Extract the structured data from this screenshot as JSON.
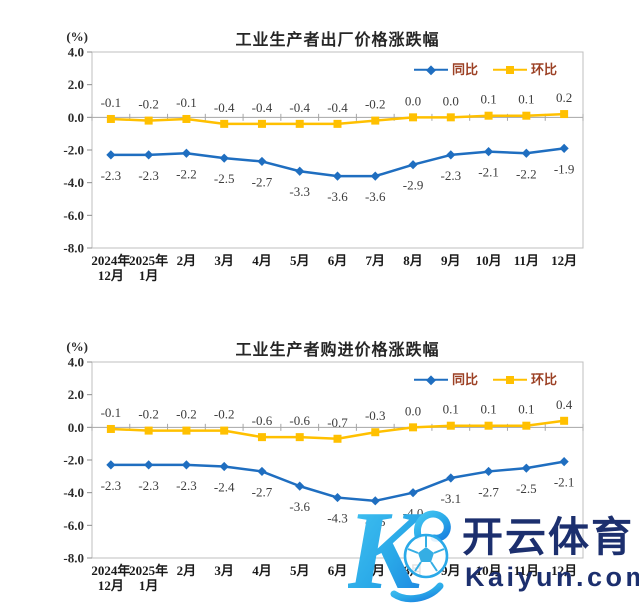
{
  "page": {
    "background": "#ffffff"
  },
  "styles": {
    "line_blue": "#1f6ec0",
    "line_gold": "#ffc000",
    "plot_border": "#bfbfbf",
    "zero_line": "#a6a6a6",
    "tick_color": "#8c8c8c",
    "axis_text": "#2b2b2b",
    "data_label_text": "#3d3d3d",
    "legend_text": "#9c4125",
    "watermark_navy": "#1c2f6e",
    "watermark_cyan": "#2aa9e8"
  },
  "chart_data": [
    {
      "type": "line",
      "title": "工业生产者出厂价格涨跌幅",
      "unit_label": "(%)",
      "grid": false,
      "legend_position": "top-right",
      "ylim": [
        -8,
        4
      ],
      "yticks": [
        4.0,
        2.0,
        0.0,
        -2.0,
        -4.0,
        -6.0,
        -8.0
      ],
      "categories": [
        "2024年\n12月",
        "2025年\n1月",
        "2月",
        "3月",
        "4月",
        "5月",
        "6月",
        "7月",
        "8月",
        "9月",
        "10月",
        "11月",
        "12月"
      ],
      "series": [
        {
          "key": "yoy",
          "name": "同比",
          "color": "#1f6ec0",
          "marker": "diamond",
          "values": [
            -2.3,
            -2.3,
            -2.2,
            -2.5,
            -2.7,
            -3.3,
            -3.6,
            -3.6,
            -2.9,
            -2.3,
            -2.1,
            -2.2,
            -1.9
          ]
        },
        {
          "key": "mom",
          "name": "环比",
          "color": "#ffc000",
          "marker": "square",
          "values": [
            -0.1,
            -0.2,
            -0.1,
            -0.4,
            -0.4,
            -0.4,
            -0.4,
            -0.2,
            0.0,
            0.0,
            0.1,
            0.1,
            0.2
          ]
        }
      ]
    },
    {
      "type": "line",
      "title": "工业生产者购进价格涨跌幅",
      "unit_label": "(%)",
      "grid": false,
      "legend_position": "top-right",
      "ylim": [
        -8,
        4
      ],
      "yticks": [
        4.0,
        2.0,
        0.0,
        -2.0,
        -4.0,
        -6.0,
        -8.0
      ],
      "categories": [
        "2024年\n12月",
        "2025年\n1月",
        "2月",
        "3月",
        "4月",
        "5月",
        "6月",
        "7月",
        "8月",
        "9月",
        "10月",
        "11月",
        "12月"
      ],
      "series": [
        {
          "key": "yoy",
          "name": "同比",
          "color": "#1f6ec0",
          "marker": "diamond",
          "values": [
            -2.3,
            -2.3,
            -2.3,
            -2.4,
            -2.7,
            -3.6,
            -4.3,
            -4.5,
            -4.0,
            -3.1,
            -2.7,
            -2.5,
            -2.1
          ]
        },
        {
          "key": "mom",
          "name": "环比",
          "color": "#ffc000",
          "marker": "square",
          "values": [
            -0.1,
            -0.2,
            -0.2,
            -0.2,
            -0.6,
            -0.6,
            -0.7,
            -0.3,
            0.0,
            0.1,
            0.1,
            0.1,
            0.4
          ]
        }
      ]
    }
  ],
  "watermark": {
    "brand_cn": "开云体育",
    "brand_en": "Kaiyun.com",
    "logo": "kaiyun-k-soccer-ball"
  }
}
